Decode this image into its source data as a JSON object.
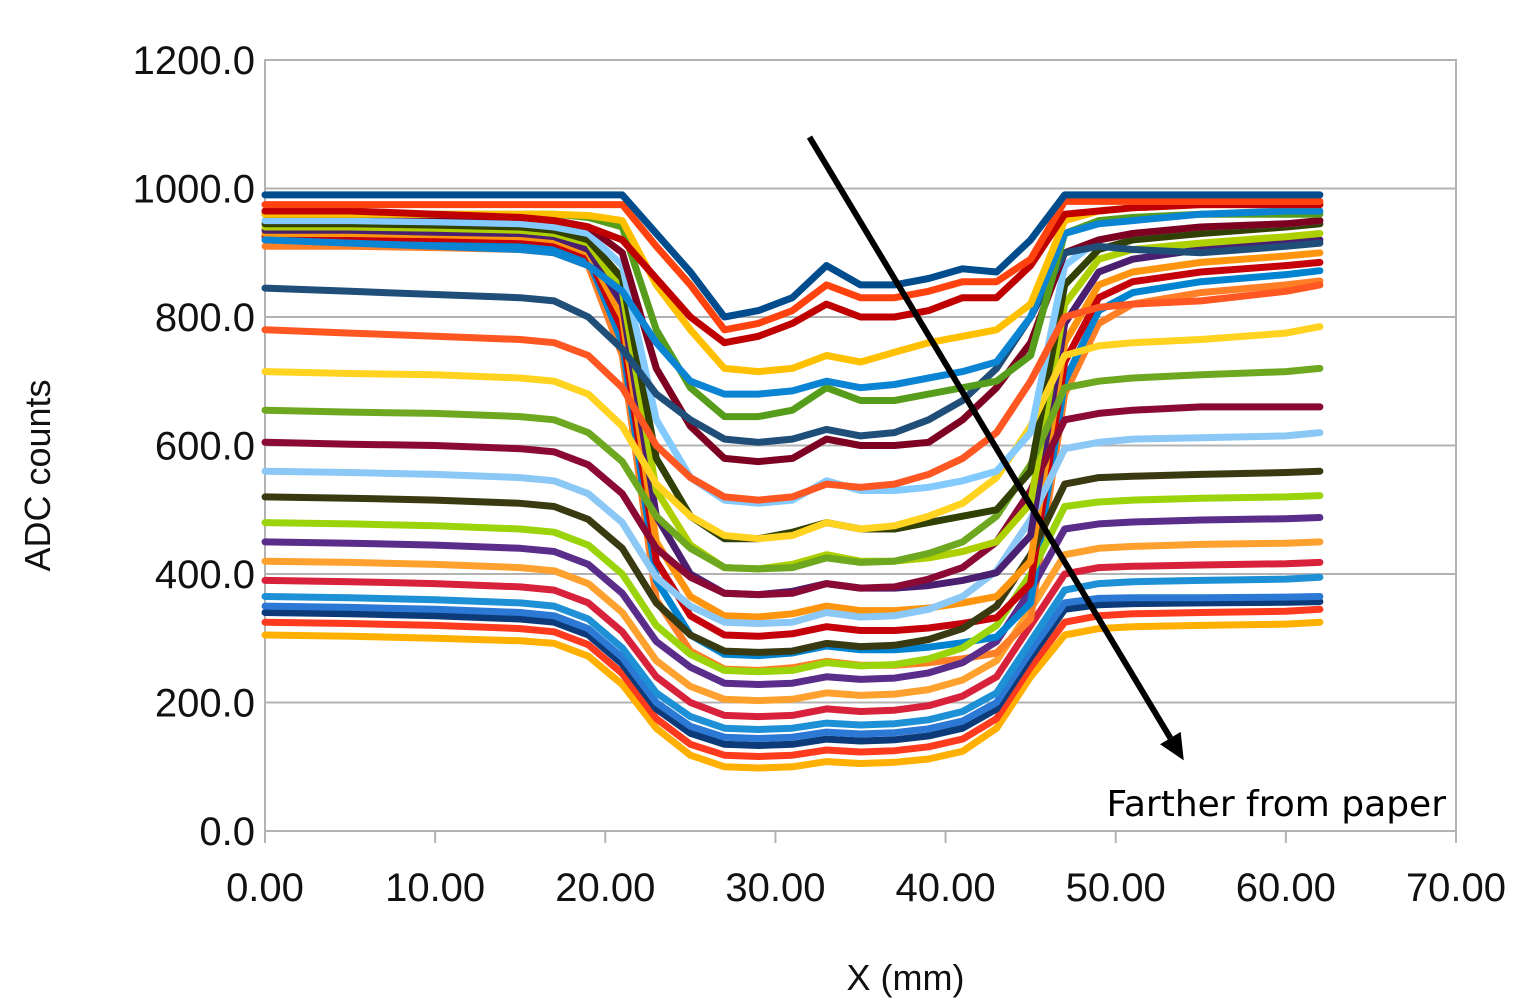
{
  "chart_data": {
    "type": "line",
    "title": "",
    "xlabel": "X (mm)",
    "ylabel": "ADC counts",
    "xlim": [
      0,
      70
    ],
    "ylim": [
      0,
      1200
    ],
    "x_ticks": [
      "0.00",
      "10.00",
      "20.00",
      "30.00",
      "40.00",
      "50.00",
      "60.00",
      "70.00"
    ],
    "y_ticks": [
      "0.0",
      "200.0",
      "400.0",
      "600.0",
      "800.0",
      "1000.0",
      "1200.0"
    ],
    "grid": true,
    "legend": "none",
    "annotation": {
      "text": "Farther from paper",
      "arrow_from": [
        32,
        1080
      ],
      "arrow_to": [
        54,
        110
      ]
    },
    "x": [
      0,
      5,
      10,
      15,
      17,
      19,
      21,
      23,
      25,
      27,
      29,
      31,
      33,
      35,
      37,
      39,
      41,
      43,
      45,
      47,
      49,
      51,
      55,
      60,
      62
    ],
    "series": [
      {
        "color": "#004c8c",
        "values": [
          990,
          990,
          990,
          990,
          990,
          990,
          990,
          930,
          870,
          800,
          810,
          830,
          880,
          850,
          850,
          860,
          875,
          870,
          920,
          990,
          990,
          990,
          990,
          990,
          990
        ]
      },
      {
        "color": "#ff420e",
        "values": [
          975,
          975,
          975,
          975,
          975,
          975,
          975,
          910,
          850,
          780,
          790,
          810,
          850,
          830,
          830,
          840,
          855,
          855,
          890,
          980,
          980,
          980,
          980,
          980,
          980
        ]
      },
      {
        "color": "#c00000",
        "values": [
          965,
          965,
          960,
          955,
          950,
          940,
          920,
          860,
          800,
          760,
          770,
          790,
          820,
          800,
          800,
          810,
          830,
          830,
          880,
          960,
          965,
          970,
          975,
          975,
          975
        ]
      },
      {
        "color": "#ffc000",
        "values": [
          960,
          960,
          960,
          960,
          960,
          958,
          950,
          850,
          780,
          720,
          715,
          720,
          740,
          730,
          745,
          760,
          770,
          780,
          820,
          950,
          965,
          970,
          975,
          975,
          975
        ]
      },
      {
        "color": "#0b84d3",
        "values": [
          920,
          915,
          910,
          905,
          900,
          880,
          840,
          760,
          700,
          680,
          680,
          685,
          700,
          690,
          695,
          705,
          715,
          730,
          800,
          930,
          945,
          950,
          960,
          965,
          965
        ]
      },
      {
        "color": "#579d1c",
        "values": [
          960,
          960,
          960,
          960,
          960,
          955,
          940,
          780,
          690,
          645,
          645,
          655,
          690,
          670,
          670,
          680,
          690,
          700,
          740,
          930,
          950,
          955,
          960,
          960,
          960
        ]
      },
      {
        "color": "#1f4e79",
        "values": [
          845,
          840,
          835,
          830,
          825,
          800,
          750,
          680,
          640,
          610,
          605,
          610,
          625,
          615,
          620,
          640,
          670,
          720,
          800,
          900,
          910,
          905,
          900,
          910,
          915
        ]
      },
      {
        "color": "#7e0021",
        "values": [
          960,
          960,
          958,
          955,
          950,
          940,
          900,
          720,
          630,
          580,
          575,
          580,
          610,
          600,
          600,
          605,
          640,
          690,
          760,
          900,
          920,
          930,
          940,
          945,
          950
        ]
      },
      {
        "color": "#ff5722",
        "values": [
          780,
          775,
          770,
          765,
          760,
          740,
          690,
          600,
          550,
          520,
          515,
          520,
          540,
          535,
          540,
          555,
          580,
          620,
          700,
          800,
          815,
          820,
          825,
          840,
          850
        ]
      },
      {
        "color": "#83caff",
        "values": [
          950,
          950,
          948,
          945,
          940,
          930,
          880,
          640,
          550,
          515,
          510,
          515,
          545,
          530,
          530,
          535,
          545,
          560,
          620,
          880,
          920,
          930,
          940,
          945,
          950
        ]
      },
      {
        "color": "#ffd320",
        "values": [
          715,
          712,
          710,
          705,
          700,
          680,
          630,
          540,
          490,
          460,
          455,
          460,
          480,
          470,
          475,
          490,
          510,
          550,
          630,
          740,
          755,
          760,
          765,
          775,
          785
        ]
      },
      {
        "color": "#314004",
        "values": [
          945,
          945,
          943,
          940,
          935,
          920,
          860,
          580,
          490,
          455,
          455,
          465,
          480,
          470,
          470,
          480,
          490,
          500,
          560,
          850,
          905,
          920,
          930,
          940,
          945
        ]
      },
      {
        "color": "#6ea820",
        "values": [
          655,
          652,
          650,
          645,
          640,
          620,
          575,
          490,
          440,
          410,
          408,
          410,
          425,
          418,
          420,
          432,
          450,
          490,
          570,
          690,
          700,
          705,
          710,
          715,
          720
        ]
      },
      {
        "color": "#aecf00",
        "values": [
          940,
          940,
          938,
          935,
          930,
          915,
          840,
          530,
          445,
          410,
          408,
          415,
          430,
          420,
          420,
          425,
          435,
          450,
          510,
          820,
          890,
          905,
          915,
          925,
          930
        ]
      },
      {
        "color": "#8b0a35",
        "values": [
          605,
          602,
          600,
          595,
          590,
          570,
          525,
          440,
          395,
          370,
          368,
          370,
          385,
          378,
          380,
          392,
          410,
          450,
          530,
          640,
          650,
          655,
          660,
          660,
          660
        ]
      },
      {
        "color": "#4b1f6f",
        "values": [
          935,
          935,
          932,
          930,
          925,
          905,
          820,
          490,
          400,
          370,
          368,
          373,
          385,
          378,
          378,
          382,
          390,
          402,
          460,
          790,
          870,
          890,
          905,
          915,
          920
        ]
      },
      {
        "color": "#8cc8f5",
        "values": [
          560,
          558,
          555,
          550,
          545,
          525,
          480,
          395,
          350,
          325,
          323,
          325,
          340,
          333,
          335,
          345,
          365,
          405,
          485,
          595,
          605,
          610,
          612,
          615,
          620
        ]
      },
      {
        "color": "#ff950e",
        "values": [
          930,
          930,
          928,
          925,
          920,
          900,
          800,
          450,
          365,
          335,
          333,
          338,
          350,
          343,
          343,
          347,
          355,
          365,
          420,
          760,
          850,
          870,
          885,
          895,
          900
        ]
      },
      {
        "color": "#3a3a12",
        "values": [
          520,
          518,
          515,
          510,
          505,
          485,
          440,
          355,
          305,
          280,
          278,
          280,
          292,
          287,
          289,
          298,
          315,
          350,
          430,
          540,
          550,
          552,
          555,
          558,
          560
        ]
      },
      {
        "color": "#c5000b",
        "values": [
          925,
          925,
          922,
          920,
          915,
          895,
          780,
          420,
          335,
          305,
          303,
          307,
          318,
          312,
          312,
          316,
          323,
          332,
          385,
          730,
          830,
          855,
          870,
          880,
          885
        ]
      },
      {
        "color": "#9bd40a",
        "values": [
          480,
          478,
          475,
          470,
          465,
          445,
          400,
          320,
          275,
          250,
          248,
          250,
          262,
          257,
          259,
          268,
          285,
          320,
          400,
          505,
          512,
          515,
          518,
          520,
          522
        ]
      },
      {
        "color": "#0084d1",
        "values": [
          920,
          920,
          918,
          915,
          910,
          890,
          760,
          390,
          305,
          275,
          273,
          277,
          288,
          282,
          282,
          286,
          293,
          302,
          355,
          700,
          810,
          838,
          855,
          866,
          872
        ]
      },
      {
        "color": "#5a2d8a",
        "values": [
          450,
          448,
          445,
          440,
          435,
          415,
          370,
          295,
          255,
          230,
          228,
          230,
          240,
          236,
          238,
          246,
          262,
          295,
          375,
          470,
          478,
          481,
          484,
          486,
          488
        ]
      },
      {
        "color": "#ff7f27",
        "values": [
          910,
          910,
          908,
          905,
          900,
          880,
          740,
          360,
          280,
          252,
          250,
          254,
          264,
          258,
          258,
          262,
          268,
          277,
          330,
          680,
          790,
          820,
          838,
          850,
          856
        ]
      },
      {
        "color": "#ffa12e",
        "values": [
          420,
          418,
          415,
          410,
          405,
          385,
          340,
          265,
          225,
          205,
          203,
          205,
          215,
          211,
          213,
          220,
          235,
          265,
          345,
          430,
          440,
          443,
          446,
          448,
          450
        ]
      },
      {
        "color": "#d8213b",
        "values": [
          390,
          388,
          385,
          380,
          375,
          355,
          310,
          240,
          200,
          180,
          178,
          180,
          190,
          186,
          188,
          195,
          210,
          240,
          320,
          400,
          410,
          412,
          414,
          416,
          418
        ]
      },
      {
        "color": "#1e90d6",
        "values": [
          365,
          363,
          360,
          355,
          350,
          330,
          285,
          215,
          178,
          160,
          158,
          160,
          168,
          165,
          167,
          173,
          186,
          215,
          295,
          375,
          385,
          388,
          390,
          392,
          395
        ]
      },
      {
        "color": "#2b78d5",
        "values": [
          350,
          348,
          345,
          340,
          335,
          315,
          270,
          200,
          163,
          146,
          144,
          146,
          154,
          151,
          153,
          159,
          171,
          200,
          280,
          355,
          362,
          363,
          363,
          364,
          365
        ]
      },
      {
        "color": "#0d3a78",
        "values": [
          340,
          338,
          335,
          330,
          325,
          305,
          260,
          190,
          152,
          135,
          133,
          135,
          143,
          140,
          142,
          148,
          160,
          190,
          270,
          345,
          352,
          354,
          355,
          356,
          357
        ]
      },
      {
        "color": "#ff3b1f",
        "values": [
          325,
          323,
          320,
          315,
          310,
          290,
          245,
          175,
          135,
          118,
          116,
          118,
          126,
          123,
          125,
          131,
          143,
          175,
          255,
          325,
          335,
          338,
          340,
          342,
          345
        ]
      },
      {
        "color": "#ffb000",
        "values": [
          305,
          303,
          300,
          296,
          292,
          272,
          228,
          160,
          118,
          100,
          98,
          100,
          108,
          105,
          107,
          112,
          124,
          160,
          240,
          305,
          315,
          318,
          320,
          322,
          325
        ]
      }
    ]
  }
}
